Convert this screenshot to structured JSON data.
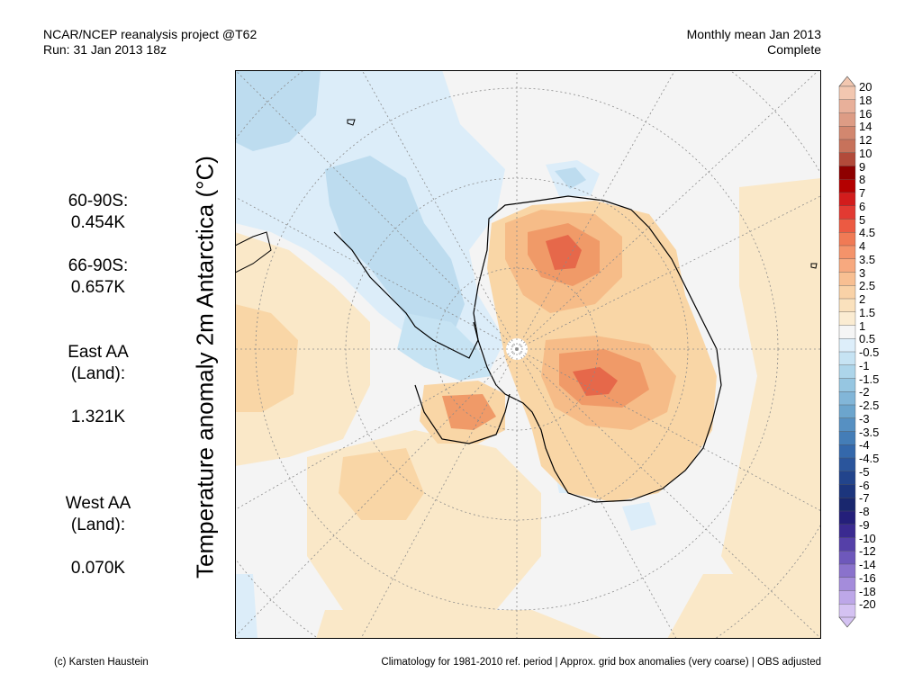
{
  "header": {
    "line1": "NCAR/NCEP reanalysis project @T62",
    "line2": "Run: 31 Jan 2013 18z",
    "right1": "Monthly mean Jan 2013",
    "right2": "Complete"
  },
  "axis_label": "Temperature anomaly 2m Antarctica (°C)",
  "stats": [
    {
      "label": "60-90S:",
      "value": "0.454K"
    },
    {
      "label": "66-90S:",
      "value": "0.657K"
    },
    {
      "label": "East AA\n(Land):",
      "value": "1.321K"
    },
    {
      "label": "West AA\n(Land):",
      "value": "0.070K"
    }
  ],
  "footer": {
    "left": "(c) Karsten Haustein",
    "right": "Climatology for 1981-2010 ref. period | Approx. grid box anomalies (very coarse) | OBS adjusted"
  },
  "colorbar": {
    "labels": [
      "20",
      "18",
      "16",
      "14",
      "12",
      "10",
      "9",
      "8",
      "7",
      "6",
      "5",
      "4.5",
      "4",
      "3.5",
      "3",
      "2.5",
      "2",
      "1.5",
      "1",
      "0.5",
      "-0.5",
      "-1",
      "-1.5",
      "-2",
      "-2.5",
      "-3",
      "-3.5",
      "-4",
      "-4.5",
      "-5",
      "-6",
      "-7",
      "-8",
      "-9",
      "-10",
      "-12",
      "-14",
      "-16",
      "-18",
      "-20"
    ],
    "colors": [
      "#f2c7b0",
      "#e8b09a",
      "#dd9c85",
      "#d2876f",
      "#c7725b",
      "#b24a3a",
      "#8e0000",
      "#b40000",
      "#d21c1c",
      "#e23a32",
      "#ec5a42",
      "#f07a55",
      "#f4936a",
      "#f7a97f",
      "#f8bf92",
      "#f9d2a7",
      "#fae1bd",
      "#fbecd2",
      "#f5f5f5",
      "#ddeefa",
      "#c6e3f3",
      "#add5ea",
      "#96c6e1",
      "#82b6d8",
      "#6ca5cd",
      "#5690c2",
      "#447db7",
      "#3468ab",
      "#2a559c",
      "#22448c",
      "#1c357d",
      "#19276e",
      "#241f7a",
      "#3a2a90",
      "#5540a8",
      "#6e58bb",
      "#8a72cc",
      "#a48cdb",
      "#bda7e8",
      "#d4c2f2"
    ]
  },
  "map": {
    "background": "#f4f4f4",
    "anomaly_colors": {
      "warm1": "#fae8c8",
      "warm2": "#f9d6a6",
      "warm3": "#f6bc88",
      "warm4": "#f09a68",
      "warm5": "#e6684a",
      "cold1": "#dcedf9",
      "cold2": "#bddcef",
      "cold3": "#9fcae4"
    }
  }
}
